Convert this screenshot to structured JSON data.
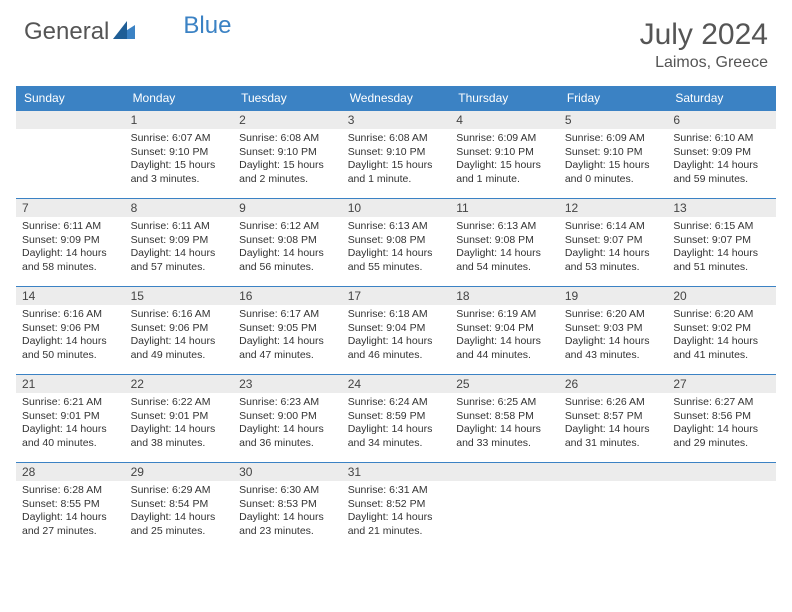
{
  "logo": {
    "text1": "General",
    "text2": "Blue"
  },
  "title": "July 2024",
  "location": "Laimos, Greece",
  "colors": {
    "header_bg": "#3b82c4",
    "daynum_bg": "#ececec",
    "border": "#3b82c4",
    "text": "#333333",
    "title_text": "#555555"
  },
  "weekdays": [
    "Sunday",
    "Monday",
    "Tuesday",
    "Wednesday",
    "Thursday",
    "Friday",
    "Saturday"
  ],
  "weeks": [
    [
      null,
      {
        "n": "1",
        "sr": "Sunrise: 6:07 AM",
        "ss": "Sunset: 9:10 PM",
        "dl": "Daylight: 15 hours and 3 minutes."
      },
      {
        "n": "2",
        "sr": "Sunrise: 6:08 AM",
        "ss": "Sunset: 9:10 PM",
        "dl": "Daylight: 15 hours and 2 minutes."
      },
      {
        "n": "3",
        "sr": "Sunrise: 6:08 AM",
        "ss": "Sunset: 9:10 PM",
        "dl": "Daylight: 15 hours and 1 minute."
      },
      {
        "n": "4",
        "sr": "Sunrise: 6:09 AM",
        "ss": "Sunset: 9:10 PM",
        "dl": "Daylight: 15 hours and 1 minute."
      },
      {
        "n": "5",
        "sr": "Sunrise: 6:09 AM",
        "ss": "Sunset: 9:10 PM",
        "dl": "Daylight: 15 hours and 0 minutes."
      },
      {
        "n": "6",
        "sr": "Sunrise: 6:10 AM",
        "ss": "Sunset: 9:09 PM",
        "dl": "Daylight: 14 hours and 59 minutes."
      }
    ],
    [
      {
        "n": "7",
        "sr": "Sunrise: 6:11 AM",
        "ss": "Sunset: 9:09 PM",
        "dl": "Daylight: 14 hours and 58 minutes."
      },
      {
        "n": "8",
        "sr": "Sunrise: 6:11 AM",
        "ss": "Sunset: 9:09 PM",
        "dl": "Daylight: 14 hours and 57 minutes."
      },
      {
        "n": "9",
        "sr": "Sunrise: 6:12 AM",
        "ss": "Sunset: 9:08 PM",
        "dl": "Daylight: 14 hours and 56 minutes."
      },
      {
        "n": "10",
        "sr": "Sunrise: 6:13 AM",
        "ss": "Sunset: 9:08 PM",
        "dl": "Daylight: 14 hours and 55 minutes."
      },
      {
        "n": "11",
        "sr": "Sunrise: 6:13 AM",
        "ss": "Sunset: 9:08 PM",
        "dl": "Daylight: 14 hours and 54 minutes."
      },
      {
        "n": "12",
        "sr": "Sunrise: 6:14 AM",
        "ss": "Sunset: 9:07 PM",
        "dl": "Daylight: 14 hours and 53 minutes."
      },
      {
        "n": "13",
        "sr": "Sunrise: 6:15 AM",
        "ss": "Sunset: 9:07 PM",
        "dl": "Daylight: 14 hours and 51 minutes."
      }
    ],
    [
      {
        "n": "14",
        "sr": "Sunrise: 6:16 AM",
        "ss": "Sunset: 9:06 PM",
        "dl": "Daylight: 14 hours and 50 minutes."
      },
      {
        "n": "15",
        "sr": "Sunrise: 6:16 AM",
        "ss": "Sunset: 9:06 PM",
        "dl": "Daylight: 14 hours and 49 minutes."
      },
      {
        "n": "16",
        "sr": "Sunrise: 6:17 AM",
        "ss": "Sunset: 9:05 PM",
        "dl": "Daylight: 14 hours and 47 minutes."
      },
      {
        "n": "17",
        "sr": "Sunrise: 6:18 AM",
        "ss": "Sunset: 9:04 PM",
        "dl": "Daylight: 14 hours and 46 minutes."
      },
      {
        "n": "18",
        "sr": "Sunrise: 6:19 AM",
        "ss": "Sunset: 9:04 PM",
        "dl": "Daylight: 14 hours and 44 minutes."
      },
      {
        "n": "19",
        "sr": "Sunrise: 6:20 AM",
        "ss": "Sunset: 9:03 PM",
        "dl": "Daylight: 14 hours and 43 minutes."
      },
      {
        "n": "20",
        "sr": "Sunrise: 6:20 AM",
        "ss": "Sunset: 9:02 PM",
        "dl": "Daylight: 14 hours and 41 minutes."
      }
    ],
    [
      {
        "n": "21",
        "sr": "Sunrise: 6:21 AM",
        "ss": "Sunset: 9:01 PM",
        "dl": "Daylight: 14 hours and 40 minutes."
      },
      {
        "n": "22",
        "sr": "Sunrise: 6:22 AM",
        "ss": "Sunset: 9:01 PM",
        "dl": "Daylight: 14 hours and 38 minutes."
      },
      {
        "n": "23",
        "sr": "Sunrise: 6:23 AM",
        "ss": "Sunset: 9:00 PM",
        "dl": "Daylight: 14 hours and 36 minutes."
      },
      {
        "n": "24",
        "sr": "Sunrise: 6:24 AM",
        "ss": "Sunset: 8:59 PM",
        "dl": "Daylight: 14 hours and 34 minutes."
      },
      {
        "n": "25",
        "sr": "Sunrise: 6:25 AM",
        "ss": "Sunset: 8:58 PM",
        "dl": "Daylight: 14 hours and 33 minutes."
      },
      {
        "n": "26",
        "sr": "Sunrise: 6:26 AM",
        "ss": "Sunset: 8:57 PM",
        "dl": "Daylight: 14 hours and 31 minutes."
      },
      {
        "n": "27",
        "sr": "Sunrise: 6:27 AM",
        "ss": "Sunset: 8:56 PM",
        "dl": "Daylight: 14 hours and 29 minutes."
      }
    ],
    [
      {
        "n": "28",
        "sr": "Sunrise: 6:28 AM",
        "ss": "Sunset: 8:55 PM",
        "dl": "Daylight: 14 hours and 27 minutes."
      },
      {
        "n": "29",
        "sr": "Sunrise: 6:29 AM",
        "ss": "Sunset: 8:54 PM",
        "dl": "Daylight: 14 hours and 25 minutes."
      },
      {
        "n": "30",
        "sr": "Sunrise: 6:30 AM",
        "ss": "Sunset: 8:53 PM",
        "dl": "Daylight: 14 hours and 23 minutes."
      },
      {
        "n": "31",
        "sr": "Sunrise: 6:31 AM",
        "ss": "Sunset: 8:52 PM",
        "dl": "Daylight: 14 hours and 21 minutes."
      },
      null,
      null,
      null
    ]
  ]
}
